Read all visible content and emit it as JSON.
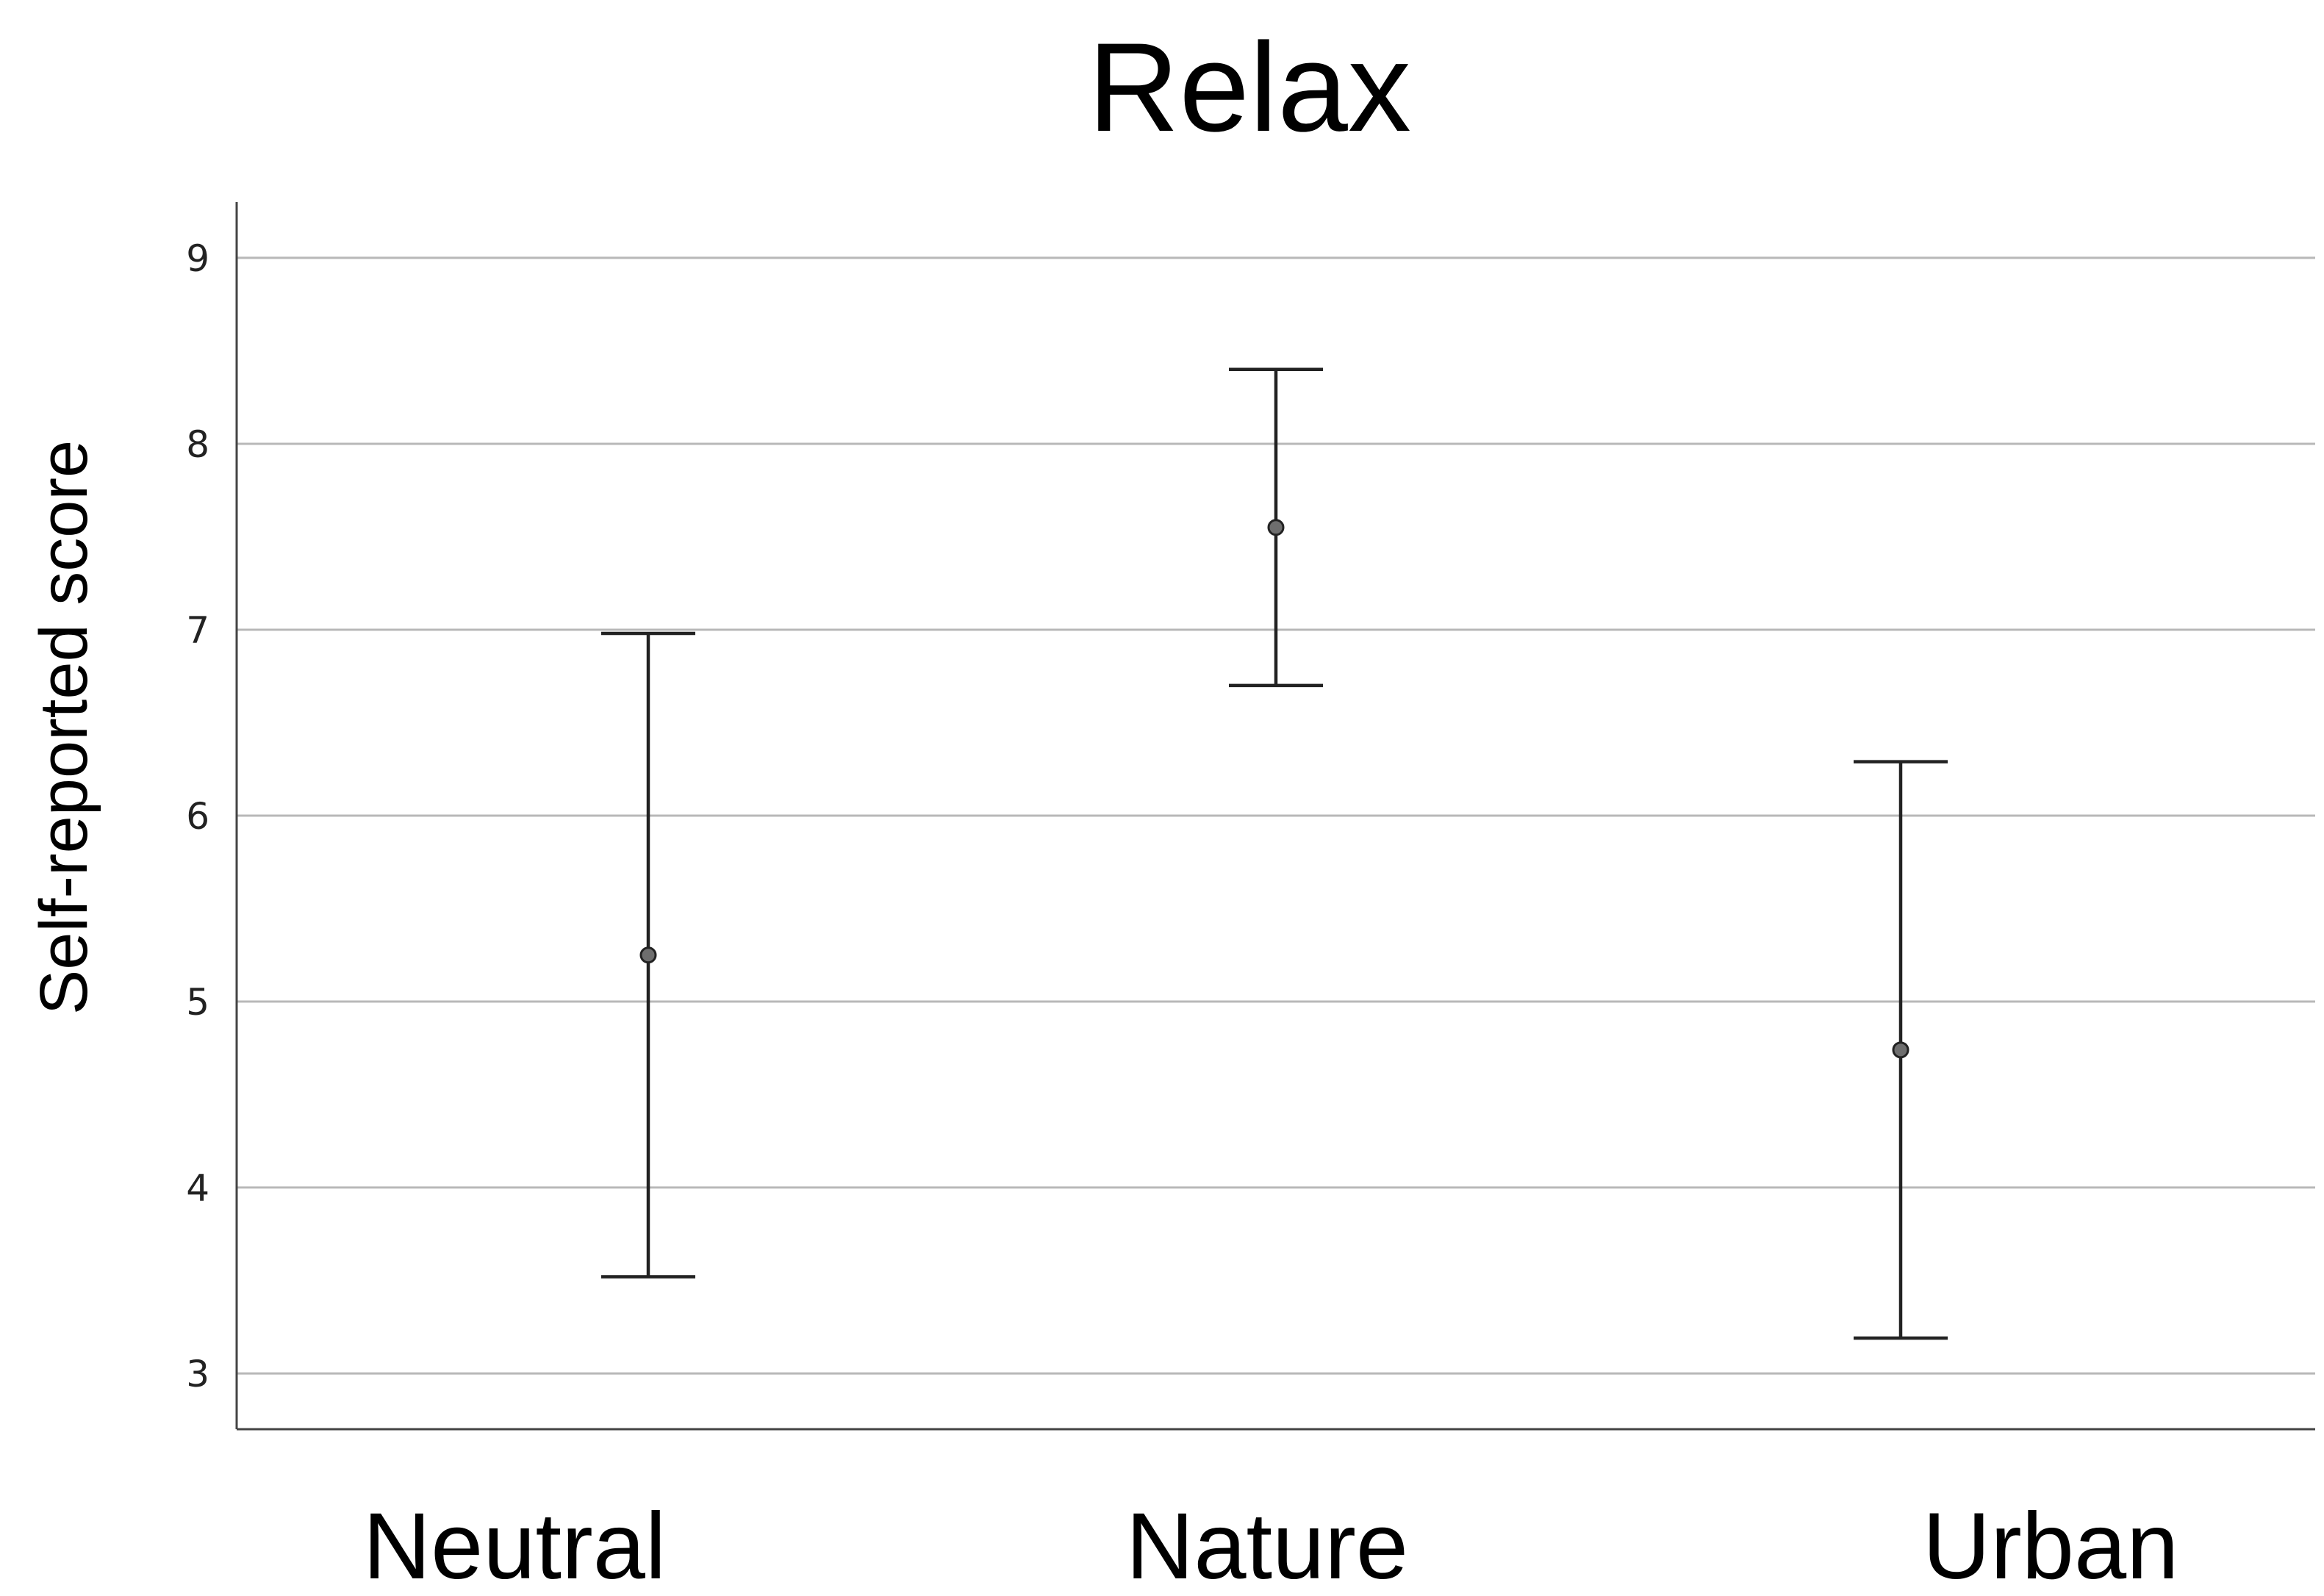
{
  "chart_data": {
    "type": "scatter",
    "title": "Relax",
    "xlabel": "",
    "ylabel": "Self-reported score",
    "categories": [
      "Neutral",
      "Nature",
      "Urban"
    ],
    "series": [
      {
        "values": [
          5.25,
          7.55,
          4.74
        ],
        "error_low": [
          3.52,
          6.7,
          3.19
        ],
        "error_high": [
          6.98,
          8.4,
          6.29
        ]
      }
    ],
    "ylim": [
      2.7,
      9.3
    ],
    "yticks": [
      "3",
      "4",
      "5",
      "6",
      "7",
      "8",
      "9"
    ],
    "grid": true,
    "legend": "none",
    "colors": {
      "marker": "#6e6e6e",
      "line": "#222222",
      "grid": "#b8b8b8"
    }
  }
}
